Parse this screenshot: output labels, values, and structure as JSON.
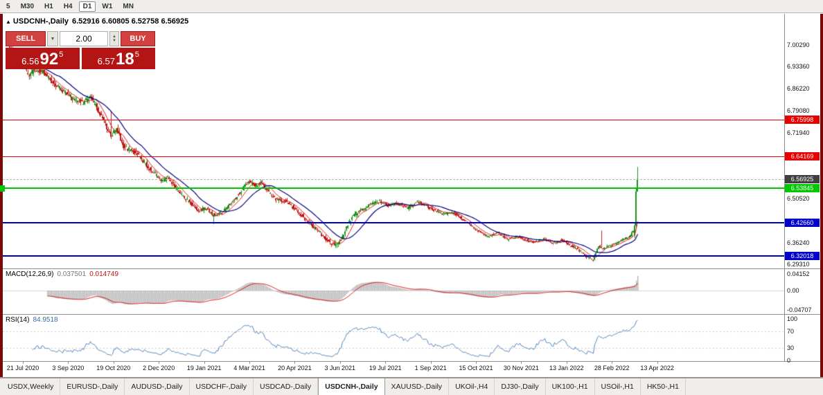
{
  "toolbar": {
    "timeframes": [
      "5",
      "M30",
      "H1",
      "H4",
      "D1",
      "W1",
      "MN"
    ],
    "active": "D1"
  },
  "chart": {
    "collapse_icon": "▲",
    "symbol": "USDCNH-,Daily",
    "ohlc_text": "6.52916 6.60805 6.52758 6.56925"
  },
  "trade_panel": {
    "sell_label": "SELL",
    "buy_label": "BUY",
    "volume": "2.00",
    "sell_price": {
      "small": "6.56",
      "big": "92",
      "sup": "5"
    },
    "buy_price": {
      "small": "6.57",
      "big": "18",
      "sup": "5"
    }
  },
  "tabs": {
    "items": [
      "USDX,Weekly",
      "EURUSD-,Daily",
      "AUDUSD-,Daily",
      "USDCHF-,Daily",
      "USDCAD-,Daily",
      "USDCNH-,Daily",
      "XAUUSD-,Daily",
      "UKOil-,H4",
      "DJ30-,Daily",
      "UK100-,H1",
      "USOil-,H1",
      "HK50-,H1"
    ],
    "active_index": 5
  },
  "colors": {
    "candle_up": "#149014",
    "candle_down": "#c41414",
    "ma_fast": "#e01010",
    "ma_slow": "#000080",
    "level_red": "#e80000",
    "level_green": "#00c800",
    "level_blue": "#0000cc",
    "current_tag": "#3f3f3f",
    "macd_hist": "#b8b8b8",
    "macd_signal": "#e01010",
    "rsi_line": "#4f81bd"
  },
  "chart_data": {
    "type": "candlestick",
    "symbol": "USDCNH-",
    "timeframe": "Daily",
    "current_ohlc": {
      "open": 6.52916,
      "high": 6.60805,
      "low": 6.52758,
      "close": 6.56925
    },
    "current_price": 6.56925,
    "x_labels": [
      "21 Jul 2020",
      "3 Sep 2020",
      "19 Oct 2020",
      "2 Dec 2020",
      "19 Jan 2021",
      "4 Mar 2021",
      "20 Apr 2021",
      "3 Jun 2021",
      "19 Jul 2021",
      "1 Sep 2021",
      "15 Oct 2021",
      "30 Nov 2021",
      "13 Jan 2022",
      "28 Feb 2022",
      "13 Apr 2022"
    ],
    "y_ticks": [
      7.0029,
      6.9336,
      6.8622,
      6.7908,
      6.7194,
      6.5052,
      6.3624,
      6.2931
    ],
    "levels": [
      {
        "price": 6.75998,
        "color_key": "level_red",
        "thickness": 1
      },
      {
        "price": 6.64169,
        "color_key": "level_red",
        "thickness": 1
      },
      {
        "price": 6.53845,
        "color_key": "level_green",
        "thickness": 2
      },
      {
        "price": 6.4266,
        "color_key": "level_blue",
        "thickness": 2
      },
      {
        "price": 6.32018,
        "color_key": "level_blue",
        "thickness": 2
      }
    ],
    "price_path": [
      [
        10,
        6.993
      ],
      [
        20,
        6.968
      ],
      [
        32,
        6.938
      ],
      [
        40,
        6.902
      ],
      [
        48,
        6.93
      ],
      [
        60,
        6.915
      ],
      [
        74,
        6.882
      ],
      [
        88,
        6.856
      ],
      [
        96,
        6.845
      ],
      [
        106,
        6.822
      ],
      [
        118,
        6.816
      ],
      [
        128,
        6.838
      ],
      [
        140,
        6.79
      ],
      [
        150,
        6.745
      ],
      [
        158,
        6.71
      ],
      [
        166,
        6.732
      ],
      [
        176,
        6.675
      ],
      [
        188,
        6.66
      ],
      [
        200,
        6.64
      ],
      [
        212,
        6.607
      ],
      [
        222,
        6.585
      ],
      [
        230,
        6.562
      ],
      [
        240,
        6.574
      ],
      [
        250,
        6.546
      ],
      [
        262,
        6.512
      ],
      [
        274,
        6.49
      ],
      [
        284,
        6.463
      ],
      [
        294,
        6.475
      ],
      [
        304,
        6.452
      ],
      [
        316,
        6.458
      ],
      [
        330,
        6.487
      ],
      [
        344,
        6.525
      ],
      [
        356,
        6.562
      ],
      [
        366,
        6.548
      ],
      [
        376,
        6.558
      ],
      [
        386,
        6.525
      ],
      [
        396,
        6.503
      ],
      [
        410,
        6.497
      ],
      [
        424,
        6.473
      ],
      [
        436,
        6.445
      ],
      [
        448,
        6.42
      ],
      [
        458,
        6.4
      ],
      [
        468,
        6.374
      ],
      [
        480,
        6.357
      ],
      [
        490,
        6.37
      ],
      [
        498,
        6.415
      ],
      [
        508,
        6.452
      ],
      [
        520,
        6.468
      ],
      [
        534,
        6.488
      ],
      [
        546,
        6.497
      ],
      [
        558,
        6.483
      ],
      [
        572,
        6.49
      ],
      [
        586,
        6.473
      ],
      [
        600,
        6.497
      ],
      [
        612,
        6.483
      ],
      [
        624,
        6.468
      ],
      [
        638,
        6.455
      ],
      [
        652,
        6.461
      ],
      [
        664,
        6.441
      ],
      [
        676,
        6.421
      ],
      [
        688,
        6.4
      ],
      [
        702,
        6.383
      ],
      [
        716,
        6.394
      ],
      [
        730,
        6.373
      ],
      [
        744,
        6.382
      ],
      [
        756,
        6.372
      ],
      [
        768,
        6.364
      ],
      [
        782,
        6.376
      ],
      [
        796,
        6.361
      ],
      [
        808,
        6.371
      ],
      [
        820,
        6.355
      ],
      [
        832,
        6.343
      ],
      [
        844,
        6.317
      ],
      [
        854,
        6.308
      ],
      [
        862,
        6.352
      ],
      [
        868,
        6.342
      ],
      [
        876,
        6.351
      ],
      [
        884,
        6.358
      ],
      [
        892,
        6.367
      ],
      [
        900,
        6.375
      ],
      [
        908,
        6.386
      ],
      [
        916,
        6.42
      ]
    ],
    "volatility": [
      [
        10,
        0.017
      ],
      [
        140,
        0.016
      ],
      [
        260,
        0.012
      ],
      [
        340,
        0.011
      ],
      [
        440,
        0.012
      ],
      [
        500,
        0.013
      ],
      [
        560,
        0.009
      ],
      [
        640,
        0.008
      ],
      [
        760,
        0.0065
      ],
      [
        850,
        0.008
      ],
      [
        916,
        0.007
      ]
    ],
    "special_wicks": [
      {
        "x": 156,
        "high": 6.79
      },
      {
        "x": 304,
        "low": 6.423
      },
      {
        "x": 484,
        "low": 6.349
      },
      {
        "x": 864,
        "high": 6.402
      }
    ],
    "recent_candles": [
      {
        "o": 6.387,
        "h": 6.425,
        "l": 6.378,
        "c": 6.418
      },
      {
        "o": 6.418,
        "h": 6.541,
        "l": 6.409,
        "c": 6.529
      },
      {
        "o": 6.52916,
        "h": 6.60805,
        "l": 6.52758,
        "c": 6.56925
      }
    ],
    "indicators": {
      "macd": {
        "label": "MACD(12,26,9)",
        "main_value": "0.037501",
        "signal_value": "0.014749",
        "scale_labels": [
          "0.04152",
          "0.00",
          "-0.04707"
        ]
      },
      "rsi": {
        "label": "RSI(14)",
        "value": "84.9518",
        "scale_values": [
          100,
          70,
          30,
          0
        ],
        "overbought": 70,
        "oversold": 30
      }
    }
  }
}
